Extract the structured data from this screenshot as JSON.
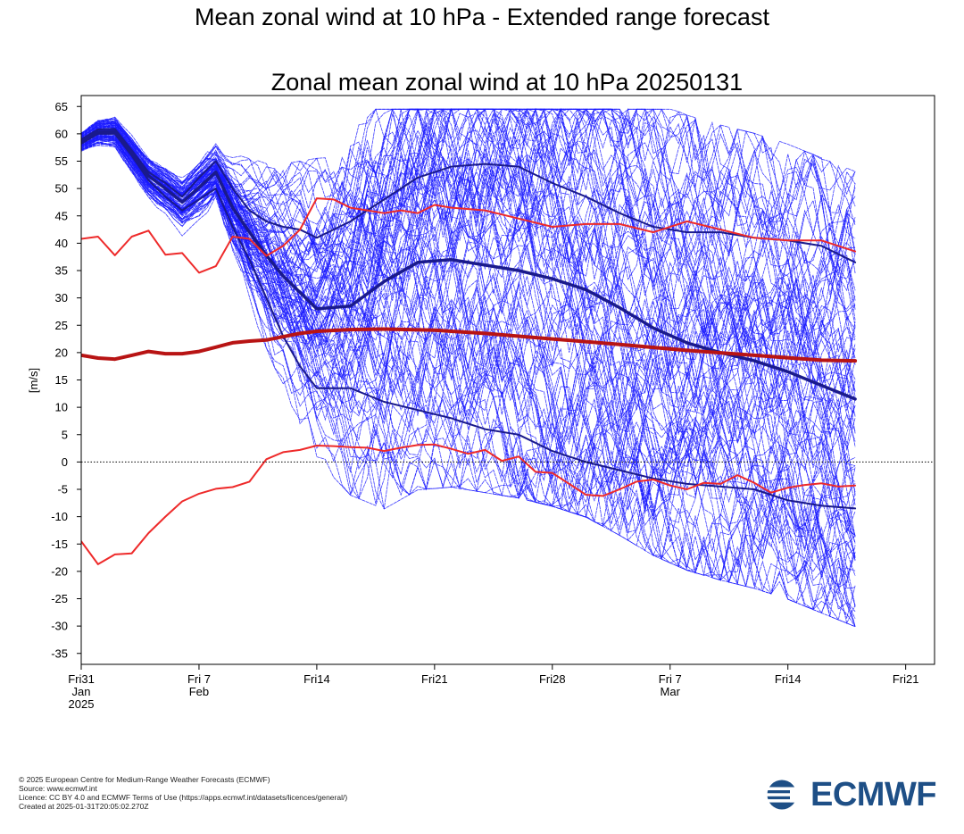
{
  "page": {
    "title": "Mean zonal wind at 10 hPa - Extended range forecast"
  },
  "chart_data": {
    "type": "line",
    "title": "Zonal mean zonal wind at 10 hPa 20250131",
    "xlabel": "",
    "ylabel": "[m/s]",
    "ylim": [
      -37,
      67
    ],
    "yticks": [
      65,
      60,
      55,
      50,
      45,
      40,
      35,
      30,
      25,
      20,
      15,
      10,
      5,
      0,
      -5,
      -10,
      -15,
      -20,
      -25,
      -30,
      -35
    ],
    "x_start_date": "2025-01-31",
    "x_end_date": "2025-03-22",
    "x_ticks": [
      {
        "date": "2025-01-31",
        "lines": [
          "Fri31",
          "Jan",
          "2025"
        ]
      },
      {
        "date": "2025-02-07",
        "lines": [
          "Fri 7",
          "Feb"
        ]
      },
      {
        "date": "2025-02-14",
        "lines": [
          "Fri14"
        ]
      },
      {
        "date": "2025-02-21",
        "lines": [
          "Fri21"
        ]
      },
      {
        "date": "2025-02-28",
        "lines": [
          "Fri28"
        ]
      },
      {
        "date": "2025-03-07",
        "lines": [
          "Fri 7",
          "Mar"
        ]
      },
      {
        "date": "2025-03-14",
        "lines": [
          "Fri14"
        ]
      },
      {
        "date": "2025-03-21",
        "lines": [
          "Fri21"
        ]
      }
    ],
    "zero_line": {
      "y": 0,
      "style": "dotted",
      "color": "#000000"
    },
    "grid": false,
    "legend": "none",
    "colors": {
      "ensemble": "#1a1aff",
      "ensemble_stats": "#1a1a8c",
      "climatology_mean": "#b81414",
      "climatology_extremes": "#ee2a2a"
    },
    "series": [
      {
        "role": "climatology_mean",
        "x": [
          "2025-01-31",
          "2025-02-01",
          "2025-02-02",
          "2025-02-03",
          "2025-02-04",
          "2025-02-05",
          "2025-02-06",
          "2025-02-07",
          "2025-02-08",
          "2025-02-09",
          "2025-02-10",
          "2025-02-11",
          "2025-02-12",
          "2025-02-13",
          "2025-02-14",
          "2025-02-16",
          "2025-02-18",
          "2025-02-21",
          "2025-02-24",
          "2025-02-28",
          "2025-03-04",
          "2025-03-08",
          "2025-03-12",
          "2025-03-16",
          "2025-03-18"
        ],
        "y": [
          19.5,
          19,
          18.8,
          19.5,
          20.2,
          19.8,
          19.8,
          20.2,
          21,
          21.8,
          22.1,
          22.3,
          22.9,
          23.5,
          23.9,
          24.2,
          24.3,
          24.1,
          23.5,
          22.5,
          21.5,
          20.4,
          19.5,
          18.6,
          18.5
        ]
      },
      {
        "role": "climatology_max",
        "x": [
          "2025-01-31",
          "2025-02-01",
          "2025-02-02",
          "2025-02-03",
          "2025-02-04",
          "2025-02-05",
          "2025-02-06",
          "2025-02-07",
          "2025-02-08",
          "2025-02-09",
          "2025-02-10",
          "2025-02-11",
          "2025-02-12",
          "2025-02-13",
          "2025-02-14",
          "2025-02-15",
          "2025-02-16",
          "2025-02-17",
          "2025-02-18",
          "2025-02-19",
          "2025-02-20",
          "2025-02-21",
          "2025-02-22",
          "2025-02-24",
          "2025-02-26",
          "2025-02-28",
          "2025-03-02",
          "2025-03-04",
          "2025-03-06",
          "2025-03-08",
          "2025-03-10",
          "2025-03-12",
          "2025-03-14",
          "2025-03-16",
          "2025-03-18"
        ],
        "y": [
          40.8,
          41.2,
          37.8,
          41.2,
          42.3,
          37.9,
          38.2,
          34.6,
          35.8,
          41.2,
          40.8,
          37.7,
          39.5,
          42.5,
          48.2,
          48,
          46.5,
          46,
          45.5,
          46,
          45.5,
          47,
          46.5,
          46,
          44.5,
          43,
          43.5,
          43.5,
          42,
          44,
          42.5,
          41,
          40.5,
          40.5,
          38.5
        ]
      },
      {
        "role": "climatology_min",
        "x": [
          "2025-01-31",
          "2025-02-01",
          "2025-02-02",
          "2025-02-03",
          "2025-02-04",
          "2025-02-05",
          "2025-02-06",
          "2025-02-07",
          "2025-02-08",
          "2025-02-09",
          "2025-02-10",
          "2025-02-11",
          "2025-02-12",
          "2025-02-13",
          "2025-02-14",
          "2025-02-15",
          "2025-02-16",
          "2025-02-17",
          "2025-02-18",
          "2025-02-19",
          "2025-02-20",
          "2025-02-21",
          "2025-02-22",
          "2025-02-23",
          "2025-02-24",
          "2025-02-25",
          "2025-02-26",
          "2025-02-27",
          "2025-02-28",
          "2025-03-01",
          "2025-03-02",
          "2025-03-03",
          "2025-03-04",
          "2025-03-05",
          "2025-03-06",
          "2025-03-07",
          "2025-03-08",
          "2025-03-09",
          "2025-03-10",
          "2025-03-11",
          "2025-03-12",
          "2025-03-13",
          "2025-03-14",
          "2025-03-15",
          "2025-03-16",
          "2025-03-17",
          "2025-03-18"
        ],
        "y": [
          -14.5,
          -18.7,
          -16.9,
          -16.7,
          -13,
          -10,
          -7.2,
          -5.8,
          -4.9,
          -4.6,
          -3.6,
          0.5,
          1.8,
          2.2,
          3,
          2.9,
          2.7,
          2.6,
          2,
          2.6,
          3.1,
          3.2,
          2.4,
          1.5,
          2.2,
          0.2,
          1,
          -1.8,
          -2,
          -4,
          -6,
          -6.2,
          -5,
          -3.6,
          -3.2,
          -4.3,
          -5,
          -3.8,
          -4,
          -2.4,
          -3.8,
          -5.6,
          -4.7,
          -4.2,
          -3.9,
          -4.5,
          -4.3
        ]
      },
      {
        "role": "ensemble_mean",
        "x": [
          "2025-01-31",
          "2025-02-01",
          "2025-02-02",
          "2025-02-03",
          "2025-02-04",
          "2025-02-05",
          "2025-02-06",
          "2025-02-07",
          "2025-02-08",
          "2025-02-09",
          "2025-02-10",
          "2025-02-11",
          "2025-02-12",
          "2025-02-13",
          "2025-02-14",
          "2025-02-16",
          "2025-02-18",
          "2025-02-20",
          "2025-02-22",
          "2025-02-24",
          "2025-02-26",
          "2025-02-28",
          "2025-03-02",
          "2025-03-04",
          "2025-03-06",
          "2025-03-08",
          "2025-03-10",
          "2025-03-12",
          "2025-03-14",
          "2025-03-16",
          "2025-03-18"
        ],
        "y": [
          58.5,
          60.3,
          60.4,
          56.5,
          52.3,
          50,
          47.5,
          50.2,
          53,
          46.5,
          42,
          37.8,
          34,
          31,
          28,
          28.5,
          33,
          36.5,
          37,
          36,
          35,
          33.5,
          31.5,
          28.2,
          24.5,
          21.8,
          20,
          18.5,
          16.5,
          14,
          11.5
        ]
      },
      {
        "role": "ensemble_upper",
        "x": [
          "2025-01-31",
          "2025-02-01",
          "2025-02-02",
          "2025-02-03",
          "2025-02-04",
          "2025-02-05",
          "2025-02-06",
          "2025-02-07",
          "2025-02-08",
          "2025-02-09",
          "2025-02-10",
          "2025-02-11",
          "2025-02-12",
          "2025-02-13",
          "2025-02-14",
          "2025-02-16",
          "2025-02-18",
          "2025-02-20",
          "2025-02-22",
          "2025-02-24",
          "2025-02-26",
          "2025-02-28",
          "2025-03-02",
          "2025-03-04",
          "2025-03-06",
          "2025-03-08",
          "2025-03-10",
          "2025-03-12",
          "2025-03-14",
          "2025-03-16",
          "2025-03-18"
        ],
        "y": [
          59,
          60.8,
          60.9,
          57,
          53,
          51,
          48.5,
          52,
          55,
          50,
          46,
          44,
          43,
          42.5,
          41,
          44,
          48,
          52,
          54,
          54.5,
          54,
          51,
          48.5,
          45.5,
          43,
          42,
          42,
          41,
          40.5,
          39.5,
          36.5
        ]
      },
      {
        "role": "ensemble_lower",
        "x": [
          "2025-01-31",
          "2025-02-01",
          "2025-02-02",
          "2025-02-03",
          "2025-02-04",
          "2025-02-05",
          "2025-02-06",
          "2025-02-07",
          "2025-02-08",
          "2025-02-09",
          "2025-02-10",
          "2025-02-11",
          "2025-02-12",
          "2025-02-13",
          "2025-02-14",
          "2025-02-16",
          "2025-02-18",
          "2025-02-20",
          "2025-02-22",
          "2025-02-24",
          "2025-02-26",
          "2025-02-28",
          "2025-03-02",
          "2025-03-04",
          "2025-03-06",
          "2025-03-08",
          "2025-03-10",
          "2025-03-12",
          "2025-03-14",
          "2025-03-16",
          "2025-03-18"
        ],
        "y": [
          58.2,
          60,
          60,
          56,
          51.5,
          48.5,
          46,
          48,
          50,
          43,
          37,
          30,
          23,
          17.5,
          13.5,
          13.5,
          11,
          9.5,
          8,
          6,
          5,
          2,
          0,
          -1.5,
          -3,
          -4,
          -4.5,
          -5,
          -7,
          -8,
          -8.5
        ]
      }
    ]
  },
  "footer": {
    "line1": "© 2025 European Centre for Medium-Range Weather Forecasts (ECMWF)",
    "line2": "Source: www.ecmwf.int",
    "line3": "Licence: CC BY 4.0 and ECMWF Terms of Use (https://apps.ecmwf.int/datasets/licences/general/)",
    "line4": "Created at 2025-01-31T20:05:02.270Z"
  },
  "logo": {
    "text": "ECMWF",
    "color": "#1e4f86"
  }
}
